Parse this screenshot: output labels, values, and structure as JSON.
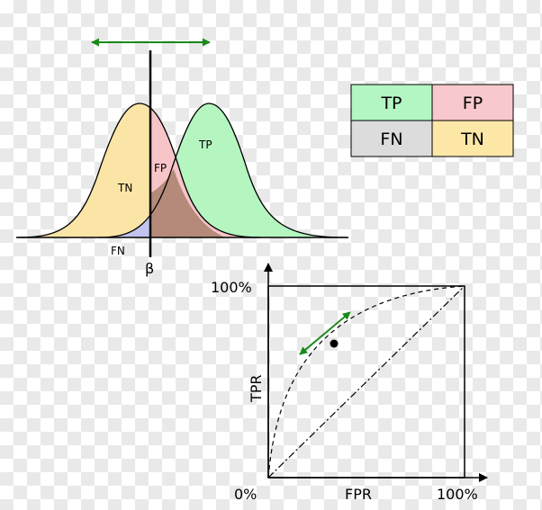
{
  "distributions": {
    "tn_label": "TN",
    "tp_label": "TP",
    "fp_label": "FP",
    "fn_label": "FN",
    "threshold_label": "β"
  },
  "legend": {
    "tp": "TP",
    "fp": "FP",
    "fn": "FN",
    "tn": "TN"
  },
  "roc": {
    "y_top_label": "100%",
    "origin_label": "0%",
    "x_right_label": "100%",
    "x_axis_label": "FPR",
    "y_axis_label": "TPR"
  },
  "colors": {
    "tn": "#fbe5a6",
    "tp": "#b4f5c0",
    "fp": "#f7c4c8",
    "fn": "#c3c3ef",
    "overlap": "#b58a7a",
    "legend_tp": "#b3f6c3",
    "legend_fp": "#f8c8cc",
    "legend_fn": "#dcdcdc",
    "legend_tn": "#fde7a7",
    "arrow": "#1a8a1a"
  }
}
